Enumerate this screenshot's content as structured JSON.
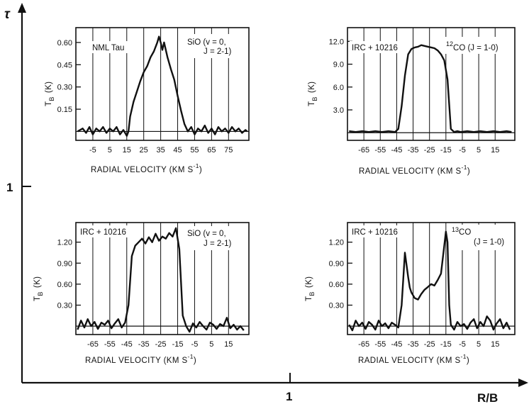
{
  "figure": {
    "outer_y_label": "τ",
    "outer_x_label": "R/B",
    "outer_x_tick": "1",
    "outer_y_tick": "1"
  },
  "chart_data": [
    {
      "type": "line",
      "id": "tl",
      "source_label": "NML Tau",
      "line_label": "SiO (v = 0,",
      "line_label2": "J = 2-1)",
      "ylabel": "T",
      "ylabel_sub": "B",
      "ylabel_unit": "(K)",
      "xlabel": "RADIAL VELOCITY (KM S",
      "xlabel_sup": "-1",
      "xlabel_close": ")",
      "xlim": [
        -15,
        87
      ],
      "ylim": [
        -0.06,
        0.7
      ],
      "xticks": [
        -5,
        5,
        15,
        25,
        35,
        45,
        55,
        65,
        75
      ],
      "xtick_labels": [
        "-5",
        "5",
        "15",
        "25",
        "35",
        "45",
        "55",
        "65",
        "75"
      ],
      "yticks": [
        0.15,
        0.3,
        0.45,
        0.6
      ],
      "ytick_labels": [
        "0.15",
        "0.30",
        "0.45",
        "0.60"
      ],
      "baseline": 0,
      "x": [
        -14,
        -11,
        -9,
        -7,
        -5,
        -3,
        -1,
        1,
        3,
        5,
        7,
        9,
        11,
        13,
        15,
        16,
        17,
        19,
        21,
        23,
        25,
        27,
        29,
        31,
        33,
        34,
        35,
        36,
        37,
        39,
        41,
        43,
        45,
        47,
        49,
        51,
        53,
        55,
        57,
        59,
        61,
        63,
        65,
        67,
        69,
        71,
        73,
        75,
        77,
        79,
        81,
        83,
        85,
        86
      ],
      "y": [
        0.0,
        0.02,
        -0.01,
        0.03,
        -0.02,
        0.02,
        0.0,
        0.03,
        -0.01,
        0.02,
        0.0,
        0.03,
        -0.02,
        0.01,
        -0.03,
        0.0,
        0.1,
        0.2,
        0.27,
        0.34,
        0.4,
        0.44,
        0.5,
        0.54,
        0.6,
        0.64,
        0.6,
        0.55,
        0.6,
        0.5,
        0.42,
        0.35,
        0.24,
        0.14,
        0.05,
        0.0,
        0.03,
        -0.02,
        0.02,
        0.0,
        0.04,
        -0.01,
        0.02,
        -0.02,
        0.03,
        0.0,
        0.02,
        -0.01,
        0.03,
        0.0,
        0.02,
        -0.01,
        0.01,
        0.0
      ]
    },
    {
      "type": "line",
      "id": "tr",
      "source_label": "IRC + 10216",
      "line_label": "CO (J = 1-0)",
      "line_label_prefix": "12",
      "ylabel": "T",
      "ylabel_sub": "B",
      "ylabel_unit": "(K)",
      "xlabel": "RADIAL VELOCITY (KM S",
      "xlabel_sup": "-1",
      "xlabel_close": ")",
      "xlim": [
        -75,
        27
      ],
      "ylim": [
        -1.0,
        13.8
      ],
      "xticks": [
        -65,
        -55,
        -45,
        -35,
        -25,
        -15,
        -5,
        5,
        15
      ],
      "xtick_labels": [
        "-65",
        "-55",
        "-45",
        "-35",
        "-25",
        "-15",
        "-5",
        "5",
        "15"
      ],
      "yticks": [
        3.0,
        6.0,
        9.0,
        12.0
      ],
      "ytick_labels": [
        "3.0",
        "6.0",
        "9.0",
        "12.0"
      ],
      "baseline": 0,
      "x": [
        -74,
        -70,
        -66,
        -62,
        -58,
        -54,
        -50,
        -46,
        -44,
        -42,
        -40,
        -38,
        -36,
        -34,
        -32,
        -30,
        -28,
        -26,
        -24,
        -22,
        -20,
        -18,
        -16,
        -14,
        -12,
        -10,
        -8,
        -6,
        -2,
        2,
        6,
        10,
        14,
        18,
        22,
        25
      ],
      "y": [
        0.2,
        0.1,
        0.2,
        0.1,
        0.2,
        0.1,
        0.2,
        0.1,
        0.5,
        3.5,
        7.5,
        10.3,
        11.0,
        11.2,
        11.3,
        11.5,
        11.4,
        11.3,
        11.2,
        11.1,
        10.8,
        10.3,
        9.5,
        7.0,
        0.5,
        0.1,
        0.2,
        0.1,
        0.2,
        0.1,
        0.2,
        0.1,
        0.2,
        0.1,
        0.2,
        0.1
      ]
    },
    {
      "type": "line",
      "id": "bl",
      "source_label": "IRC + 10216",
      "line_label": "SiO (v = 0,",
      "line_label2": "J = 2-1)",
      "ylabel": "T",
      "ylabel_sub": "B",
      "ylabel_unit": "(K)",
      "xlabel": "RADIAL VELOCITY (KM S",
      "xlabel_sup": "-1",
      "xlabel_close": ")",
      "xlim": [
        -75,
        27
      ],
      "ylim": [
        -0.12,
        1.48
      ],
      "xticks": [
        -65,
        -55,
        -45,
        -35,
        -25,
        -15,
        -5,
        5,
        15
      ],
      "xtick_labels": [
        "-65",
        "-55",
        "-45",
        "-35",
        "-25",
        "-15",
        "-5",
        "5",
        "15"
      ],
      "yticks": [
        0.3,
        0.6,
        0.9,
        1.2
      ],
      "ytick_labels": [
        "0.30",
        "0.60",
        "0.90",
        "1.20"
      ],
      "baseline": 0,
      "x": [
        -74,
        -72,
        -70,
        -68,
        -66,
        -64,
        -62,
        -60,
        -58,
        -56,
        -54,
        -52,
        -50,
        -48,
        -46,
        -44,
        -42,
        -40,
        -38,
        -36,
        -34,
        -32,
        -30,
        -28,
        -26,
        -24,
        -22,
        -20,
        -18,
        -16,
        -14,
        -12,
        -10,
        -8,
        -6,
        -4,
        -2,
        0,
        2,
        4,
        6,
        8,
        10,
        12,
        14,
        16,
        18,
        20,
        22,
        24
      ],
      "y": [
        -0.05,
        0.08,
        -0.02,
        0.1,
        0.0,
        0.06,
        -0.04,
        0.05,
        0.02,
        0.08,
        -0.03,
        0.04,
        0.1,
        -0.02,
        0.05,
        0.3,
        1.0,
        1.15,
        1.2,
        1.25,
        1.18,
        1.27,
        1.2,
        1.32,
        1.22,
        1.28,
        1.25,
        1.33,
        1.28,
        1.4,
        1.1,
        0.15,
        0.0,
        -0.08,
        0.04,
        -0.02,
        0.06,
        0.0,
        -0.05,
        0.05,
        0.02,
        -0.04,
        0.03,
        0.0,
        0.12,
        -0.03,
        0.02,
        -0.05,
        0.0,
        -0.06
      ]
    },
    {
      "type": "line",
      "id": "br",
      "source_label": "IRC + 10216",
      "line_label": "CO",
      "line_label_prefix": "13",
      "line_label2": "(J = 1-0)",
      "ylabel": "T",
      "ylabel_sub": "B",
      "ylabel_unit": "(K)",
      "xlabel": "RADIAL VELOCITY (KM S",
      "xlabel_sup": "-1",
      "xlabel_close": ")",
      "xlim": [
        -75,
        27
      ],
      "ylim": [
        -0.12,
        1.48
      ],
      "xticks": [
        -65,
        -55,
        -45,
        -35,
        -25,
        -15,
        -5,
        5,
        15
      ],
      "xtick_labels": [
        "-65",
        "-55",
        "-45",
        "-35",
        "-25",
        "-15",
        "-5",
        "5",
        "15"
      ],
      "yticks": [
        0.3,
        0.6,
        0.9,
        1.2
      ],
      "ytick_labels": [
        "0.30",
        "0.60",
        "0.90",
        "1.20"
      ],
      "baseline": 0,
      "x": [
        -74,
        -72,
        -70,
        -68,
        -66,
        -64,
        -62,
        -60,
        -58,
        -56,
        -54,
        -52,
        -50,
        -48,
        -46,
        -44,
        -42,
        -40,
        -38,
        -37,
        -36,
        -34,
        -32,
        -30,
        -28,
        -26,
        -24,
        -22,
        -20,
        -18,
        -16,
        -15,
        -14,
        -13,
        -12,
        -10,
        -8,
        -6,
        -4,
        -2,
        0,
        2,
        4,
        6,
        8,
        10,
        12,
        14,
        16,
        18,
        20,
        22,
        24
      ],
      "y": [
        0.02,
        -0.06,
        0.08,
        0.0,
        0.05,
        -0.04,
        0.06,
        0.02,
        -0.05,
        0.08,
        0.0,
        0.04,
        -0.03,
        0.05,
        0.02,
        -0.02,
        0.3,
        1.05,
        0.7,
        0.55,
        0.48,
        0.4,
        0.38,
        0.46,
        0.52,
        0.56,
        0.6,
        0.58,
        0.66,
        0.75,
        1.15,
        1.35,
        1.2,
        0.3,
        0.02,
        -0.05,
        0.06,
        0.0,
        0.03,
        -0.04,
        0.05,
        0.1,
        -0.03,
        0.06,
        0.0,
        0.14,
        0.08,
        -0.05,
        0.04,
        0.1,
        -0.03,
        0.05,
        -0.05
      ]
    }
  ]
}
